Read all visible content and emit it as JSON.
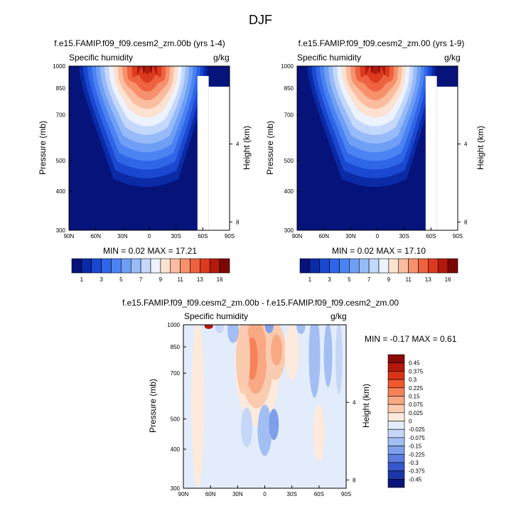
{
  "figure": {
    "title": "DJF"
  },
  "chart_data": [
    {
      "type": "heatmap",
      "title": "f.e15.FAMIP.f09_f09.cesm2_zm.00b (yrs 1-4)",
      "subtitle_left": "Specific humidity",
      "subtitle_right": "g/kg",
      "ylabel": "Pressure (mb)",
      "ylabel_right": "Height (km)",
      "xticks": [
        "90N",
        "60N",
        "30N",
        "0",
        "30S",
        "60S",
        "90S"
      ],
      "yticks": [
        "300",
        "400",
        "500",
        "700",
        "850",
        "1000"
      ],
      "yticks_right": [
        "8",
        "4"
      ],
      "x_range": [
        90,
        -90
      ],
      "y_range": [
        1000,
        300
      ],
      "y_scale": "log",
      "min_text": "MIN =   0.02  MAX =  17.21",
      "stats": {
        "min": 0.02,
        "max": 17.21
      },
      "colorbar": {
        "labels": [
          "1",
          "3",
          "5",
          "7",
          "9",
          "11",
          "13",
          "16"
        ],
        "levels": [
          1,
          2,
          3,
          4,
          5,
          6,
          7,
          8,
          9,
          10,
          11,
          12,
          13,
          14,
          16
        ],
        "colors": [
          "#06137a",
          "#0a2aa6",
          "#1a48d0",
          "#2f66e8",
          "#4c83f2",
          "#6f9ff5",
          "#97bbf8",
          "#c3d8fb",
          "#ecf2fe",
          "#fde1d1",
          "#fbbd9f",
          "#f7916c",
          "#ee6240",
          "#dc3a1e",
          "#b31a0c",
          "#7c0606"
        ]
      }
    },
    {
      "type": "heatmap",
      "title": "f.e15.FAMIP.f09_f09.cesm2_zm.00 (yrs 1-9)",
      "subtitle_left": "Specific humidity",
      "subtitle_right": "g/kg",
      "ylabel": "Pressure (mb)",
      "ylabel_right": "Height (km)",
      "xticks": [
        "90N",
        "60N",
        "30N",
        "0",
        "30S",
        "60S",
        "90S"
      ],
      "yticks": [
        "300",
        "400",
        "500",
        "700",
        "850",
        "1000"
      ],
      "yticks_right": [
        "8",
        "4"
      ],
      "x_range": [
        90,
        -90
      ],
      "y_range": [
        1000,
        300
      ],
      "y_scale": "log",
      "min_text": "MIN =   0.02  MAX =  17.10",
      "stats": {
        "min": 0.02,
        "max": 17.1
      },
      "colorbar": {
        "labels": [
          "1",
          "3",
          "5",
          "7",
          "9",
          "11",
          "13",
          "16"
        ],
        "levels": [
          1,
          2,
          3,
          4,
          5,
          6,
          7,
          8,
          9,
          10,
          11,
          12,
          13,
          14,
          16
        ],
        "colors": [
          "#06137a",
          "#0a2aa6",
          "#1a48d0",
          "#2f66e8",
          "#4c83f2",
          "#6f9ff5",
          "#97bbf8",
          "#c3d8fb",
          "#ecf2fe",
          "#fde1d1",
          "#fbbd9f",
          "#f7916c",
          "#ee6240",
          "#dc3a1e",
          "#b31a0c",
          "#7c0606"
        ]
      }
    },
    {
      "type": "heatmap",
      "title": "f.e15.FAMIP.f09_f09.cesm2_zm.00b - f.e15.FAMIP.f09_f09.cesm2_zm.00",
      "subtitle_left": "Specific humidity",
      "subtitle_right": "g/kg",
      "ylabel": "Pressure (mb)",
      "ylabel_right": "Height (km)",
      "xticks": [
        "90N",
        "60N",
        "30N",
        "0",
        "30S",
        "60S",
        "90S"
      ],
      "yticks": [
        "300",
        "400",
        "500",
        "700",
        "850",
        "1000"
      ],
      "yticks_right": [
        "8",
        "4"
      ],
      "x_range": [
        90,
        -90
      ],
      "y_range": [
        1000,
        300
      ],
      "y_scale": "log",
      "min_text": "MIN =  -0.17  MAX =   0.61",
      "stats": {
        "min": -0.17,
        "max": 0.61
      },
      "colorbar": {
        "labels": [
          "0.45",
          "0.375",
          "0.3",
          "0.225",
          "0.15",
          "0.075",
          "0.025",
          "0",
          "-0.025",
          "-0.075",
          "-0.15",
          "-0.225",
          "-0.3",
          "-0.375",
          "-0.45"
        ],
        "colors": [
          "#8a0a05",
          "#b5170b",
          "#d93317",
          "#f0582f",
          "#f7825a",
          "#f9a884",
          "#fbcbb0",
          "#fdeadd",
          "#e3ecfb",
          "#c5d6f7",
          "#a3bef2",
          "#809fea",
          "#5a7ddf",
          "#3658cc",
          "#1c36a6",
          "#0a1677"
        ]
      }
    }
  ]
}
